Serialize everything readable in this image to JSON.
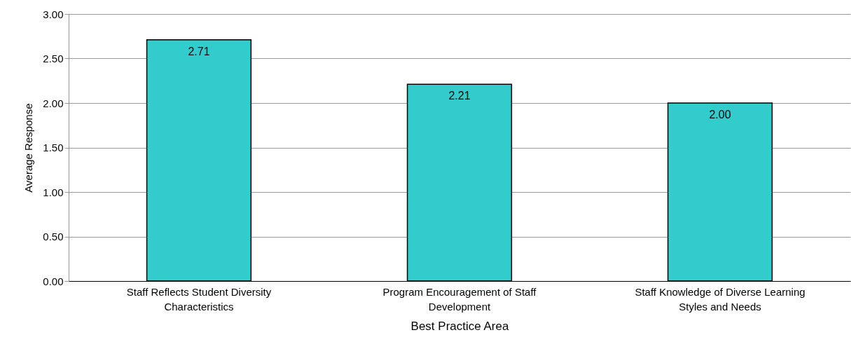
{
  "chart_data": {
    "type": "bar",
    "xlabel": "Best Practice Area",
    "ylabel": "Average Response",
    "categories": [
      "Staff Reflects Student Diversity Characteristics",
      "Program Encouragement of Staff Development",
      "Staff Knowledge of Diverse Learning Styles and Needs"
    ],
    "values": [
      2.71,
      2.21,
      2.0
    ],
    "color": "#33cccc",
    "ylim": [
      0,
      3
    ],
    "yticks": [
      {
        "value": 0,
        "label": "0.00"
      },
      {
        "value": 0.5,
        "label": "0.50"
      },
      {
        "value": 1,
        "label": "1.00"
      },
      {
        "value": 1.5,
        "label": "1.50"
      },
      {
        "value": 2,
        "label": "2.00"
      },
      {
        "value": 2.5,
        "label": "2.50"
      },
      {
        "value": 3,
        "label": "3.00"
      }
    ],
    "value_labels": [
      "2.71",
      "2.21",
      "2.00"
    ],
    "grid": "y"
  }
}
